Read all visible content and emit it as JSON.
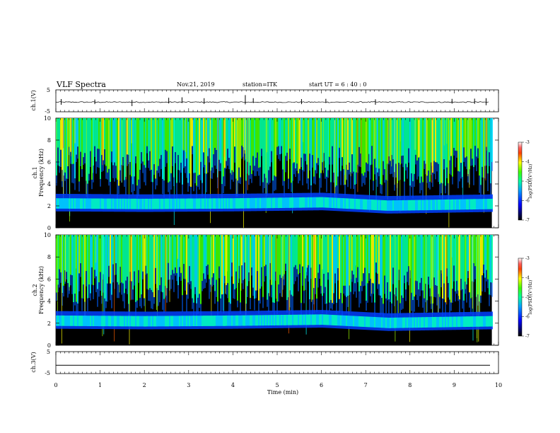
{
  "header": {
    "title": "VLF Spectra",
    "date": "Nov.21, 2019",
    "station": "station=ITK",
    "start": "start  UT  =  6  : 40 : 0"
  },
  "chart_data": [
    {
      "type": "line",
      "name": "ch1_waveform",
      "ylabel": "ch.1(V)",
      "ylim": [
        -5,
        5
      ],
      "yticks": [
        "5",
        "-5"
      ],
      "xlim": [
        0,
        10
      ],
      "baseline": -0.6,
      "spikes": [
        {
          "x": 0.12,
          "min": -1.8,
          "max": 0.8
        },
        {
          "x": 0.88,
          "min": -1.5,
          "max": 0.6
        },
        {
          "x": 1.72,
          "min": -2.4,
          "max": 0.4
        },
        {
          "x": 2.55,
          "min": -1.2,
          "max": 1.4
        },
        {
          "x": 2.85,
          "min": -1.0,
          "max": 1.6
        },
        {
          "x": 3.35,
          "min": -1.4,
          "max": 1.2
        },
        {
          "x": 4.28,
          "min": -1.6,
          "max": 2.6
        },
        {
          "x": 4.46,
          "min": -1.0,
          "max": 1.2
        },
        {
          "x": 5.55,
          "min": -1.5,
          "max": 0.8
        },
        {
          "x": 6.1,
          "min": -1.0,
          "max": 0.9
        },
        {
          "x": 7.22,
          "min": -1.8,
          "max": 0.7
        },
        {
          "x": 8.95,
          "min": -1.3,
          "max": 0.9
        },
        {
          "x": 9.46,
          "min": -1.4,
          "max": 1.0
        },
        {
          "x": 9.72,
          "min": -2.0,
          "max": 1.2
        }
      ]
    },
    {
      "type": "heatmap",
      "name": "ch1_spectrogram",
      "ylabel_line1": "ch.1",
      "ylabel_line2": "Frequency (kHz)",
      "ylim": [
        0,
        10
      ],
      "yticks": [
        "0",
        "2",
        "4",
        "6",
        "8",
        "10"
      ],
      "xlim": [
        0,
        9.85
      ],
      "colorbar_label": "log(PSD)(V²/Hz)",
      "colorbar_range": [
        -7,
        -3
      ],
      "colorbar_ticks": [
        "-3",
        "-4",
        "-5",
        "-6",
        "-7"
      ],
      "band_low_khz": 1.6,
      "band_high_khz": 3.0,
      "features": {
        "hiss_band_center_khz": [
          {
            "x": 0,
            "y": 2.2
          },
          {
            "x": 2,
            "y": 2.15
          },
          {
            "x": 4,
            "y": 2.2
          },
          {
            "x": 6,
            "y": 2.3
          },
          {
            "x": 7.5,
            "y": 2.0
          },
          {
            "x": 9.85,
            "y": 2.15
          }
        ],
        "sferic_activity_top_khz": 6.0
      }
    },
    {
      "type": "heatmap",
      "name": "ch2_spectrogram",
      "ylabel_line1": "ch.2",
      "ylabel_line2": "Frequency (kHz)",
      "ylim": [
        0,
        10
      ],
      "yticks": [
        "0",
        "2",
        "4",
        "6",
        "8",
        "10"
      ],
      "xlim": [
        0,
        9.85
      ],
      "colorbar_label": "log(PSD)(V²/Hz)",
      "colorbar_range": [
        -7,
        -3
      ],
      "colorbar_ticks": [
        "-3",
        "-4",
        "-5",
        "-6",
        "-7"
      ],
      "band_low_khz": 1.6,
      "band_high_khz": 3.0,
      "features": {
        "hiss_band_center_khz": [
          {
            "x": 0,
            "y": 2.2
          },
          {
            "x": 2,
            "y": 2.15
          },
          {
            "x": 4,
            "y": 2.2
          },
          {
            "x": 6,
            "y": 2.3
          },
          {
            "x": 7.5,
            "y": 2.0
          },
          {
            "x": 9.85,
            "y": 2.15
          }
        ],
        "sferic_activity_top_khz": 6.0
      }
    },
    {
      "type": "line",
      "name": "ch3_waveform",
      "ylabel": "ch.3(V)",
      "ylim": [
        -5,
        5
      ],
      "yticks": [
        "5",
        "-5"
      ],
      "xlim": [
        0,
        10
      ],
      "baseline": -1.2
    }
  ],
  "xaxis": {
    "label": "Time (min)",
    "ticks": [
      "0",
      "1",
      "2",
      "3",
      "4",
      "5",
      "6",
      "7",
      "8",
      "9",
      "10"
    ]
  }
}
